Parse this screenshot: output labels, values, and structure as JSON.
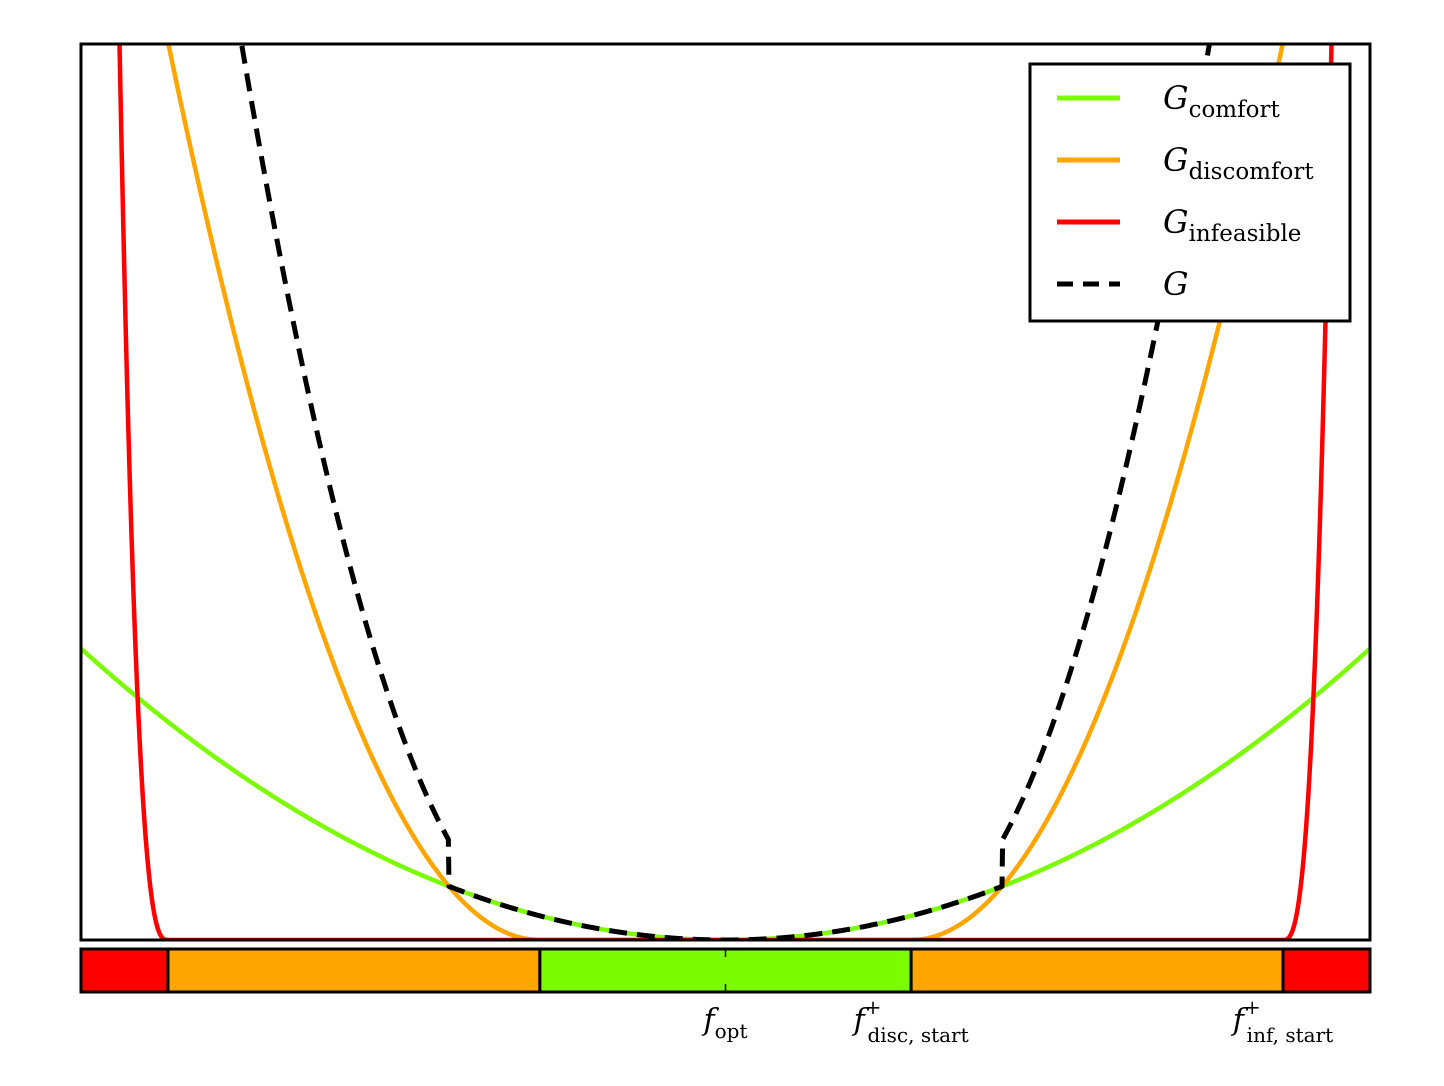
{
  "chart_data": {
    "type": "line",
    "title": "",
    "xlabel": "",
    "ylabel": "",
    "xlim": [
      -1.0,
      1.0
    ],
    "ylim": [
      0,
      1.0
    ],
    "grid": false,
    "legend_position": "top-right",
    "x_ticks": [
      {
        "x": 0.0,
        "base": "f",
        "sub": "opt",
        "sup": ""
      },
      {
        "x": 0.288,
        "base": "f",
        "sub": "disc, start",
        "sup": "+"
      },
      {
        "x": 0.865,
        "base": "f",
        "sub": "inf, start",
        "sup": "+"
      }
    ],
    "series": [
      {
        "name": "G",
        "sub": "comfort",
        "color": "#7cfc00",
        "style": "solid",
        "kind": "comfort"
      },
      {
        "name": "G",
        "sub": "discomfort",
        "color": "#ffa500",
        "style": "solid",
        "kind": "discomfort"
      },
      {
        "name": "G",
        "sub": "infeasible",
        "color": "#ff0000",
        "style": "solid",
        "kind": "infeasible"
      },
      {
        "name": "G",
        "sub": "",
        "color": "#000000",
        "style": "dashed",
        "kind": "total"
      }
    ],
    "zones": [
      {
        "from": -1.0,
        "to": -0.865,
        "color": "#ff0000"
      },
      {
        "from": -0.865,
        "to": -0.288,
        "color": "#ffa500"
      },
      {
        "from": -0.288,
        "to": 0.288,
        "color": "#7cfc00"
      },
      {
        "from": 0.288,
        "to": 0.865,
        "color": "#ffa500"
      },
      {
        "from": 0.865,
        "to": 1.0,
        "color": "#ff0000"
      }
    ]
  }
}
